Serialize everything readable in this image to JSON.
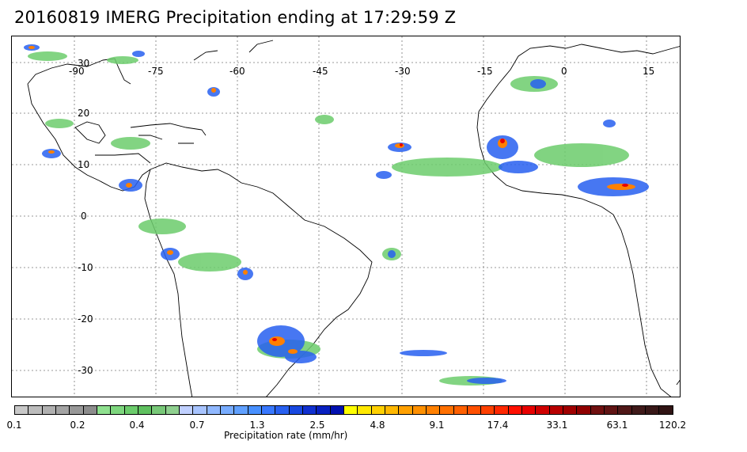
{
  "title": "20160819 IMERG Precipitation ending at 17:29:59 Z",
  "map": {
    "lon_labels": [
      "-90",
      "-75",
      "-60",
      "-45",
      "-30",
      "-15",
      "0",
      "15"
    ],
    "lat_labels": [
      "30",
      "20",
      "10",
      "0",
      "-10",
      "-20",
      "-30"
    ]
  },
  "colorbar": {
    "title": "Precipitation rate (mm/hr)",
    "tick_labels": [
      "0.1",
      "0.2",
      "0.4",
      "0.7",
      "1.3",
      "2.5",
      "4.8",
      "9.1",
      "17.4",
      "33.1",
      "63.1",
      "120.2"
    ],
    "colors": [
      "#c8c8c8",
      "#bcbcbc",
      "#b0b0b0",
      "#a4a4a4",
      "#989898",
      "#8c8c8c",
      "#8fe08f",
      "#7ed67e",
      "#6ccc6c",
      "#5fc05f",
      "#78c878",
      "#8fd08f",
      "#c0d0ff",
      "#a8c4ff",
      "#90b8ff",
      "#78acff",
      "#60a0ff",
      "#4890ff",
      "#3878ff",
      "#2860f0",
      "#1848e0",
      "#1030d0",
      "#0820c0",
      "#0010b0",
      "#ffff00",
      "#ffe800",
      "#ffd000",
      "#ffb800",
      "#ffa000",
      "#ff9000",
      "#ff8000",
      "#ff7000",
      "#ff6000",
      "#ff5000",
      "#ff4000",
      "#ff2800",
      "#ff1000",
      "#e80000",
      "#d00000",
      "#b80000",
      "#a00000",
      "#900000",
      "#701010",
      "#601414",
      "#501818",
      "#401a1a",
      "#381818",
      "#301414"
    ]
  }
}
